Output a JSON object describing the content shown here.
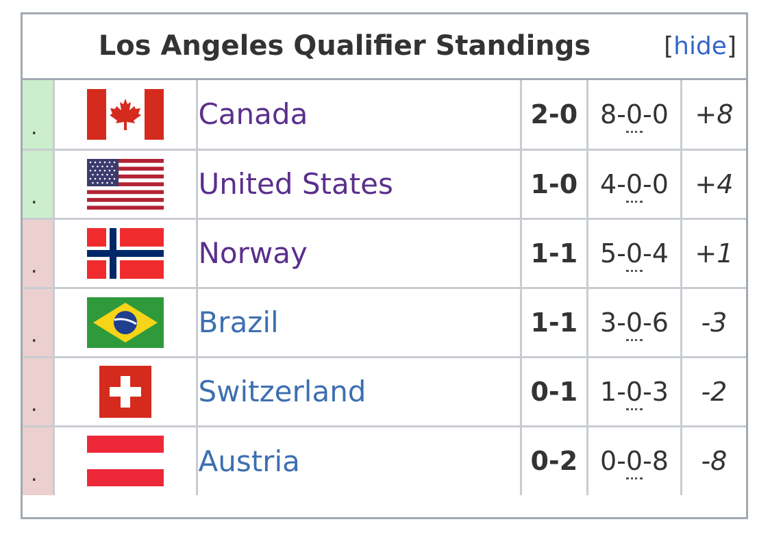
{
  "title": "Los Angeles Qualifier Standings",
  "toggle": {
    "open_bracket": "[",
    "label": "hide",
    "close_bracket": "]"
  },
  "rows": [
    {
      "mark": ".",
      "status": "advance",
      "country": "Canada",
      "flag": "canada-flag",
      "link_visited": true,
      "record": "2-0",
      "games_a": "8",
      "games_b": "0",
      "games_c": "0",
      "diff": "+8"
    },
    {
      "mark": ".",
      "status": "advance",
      "country": "United States",
      "flag": "usa-flag",
      "link_visited": true,
      "record": "1-0",
      "games_a": "4",
      "games_b": "0",
      "games_c": "0",
      "diff": "+4"
    },
    {
      "mark": ".",
      "status": "eliminated",
      "country": "Norway",
      "flag": "norway-flag",
      "link_visited": true,
      "record": "1-1",
      "games_a": "5",
      "games_b": "0",
      "games_c": "4",
      "diff": "+1"
    },
    {
      "mark": ".",
      "status": "eliminated",
      "country": "Brazil",
      "flag": "brazil-flag",
      "link_visited": false,
      "record": "1-1",
      "games_a": "3",
      "games_b": "0",
      "games_c": "6",
      "diff": "-3"
    },
    {
      "mark": ".",
      "status": "eliminated",
      "country": "Switzerland",
      "flag": "switzerland-flag",
      "link_visited": false,
      "record": "0-1",
      "games_a": "1",
      "games_b": "0",
      "games_c": "3",
      "diff": "-2"
    },
    {
      "mark": ".",
      "status": "eliminated",
      "country": "Austria",
      "flag": "austria-flag",
      "link_visited": false,
      "record": "0-2",
      "games_a": "0",
      "games_b": "0",
      "games_c": "8",
      "diff": "-8"
    }
  ],
  "colors": {
    "advance": "#cceecc",
    "eliminated": "#eccfcf",
    "visited_link": "#5a2f8c",
    "link": "#3d6fb0",
    "border": "#c8ccd1"
  }
}
